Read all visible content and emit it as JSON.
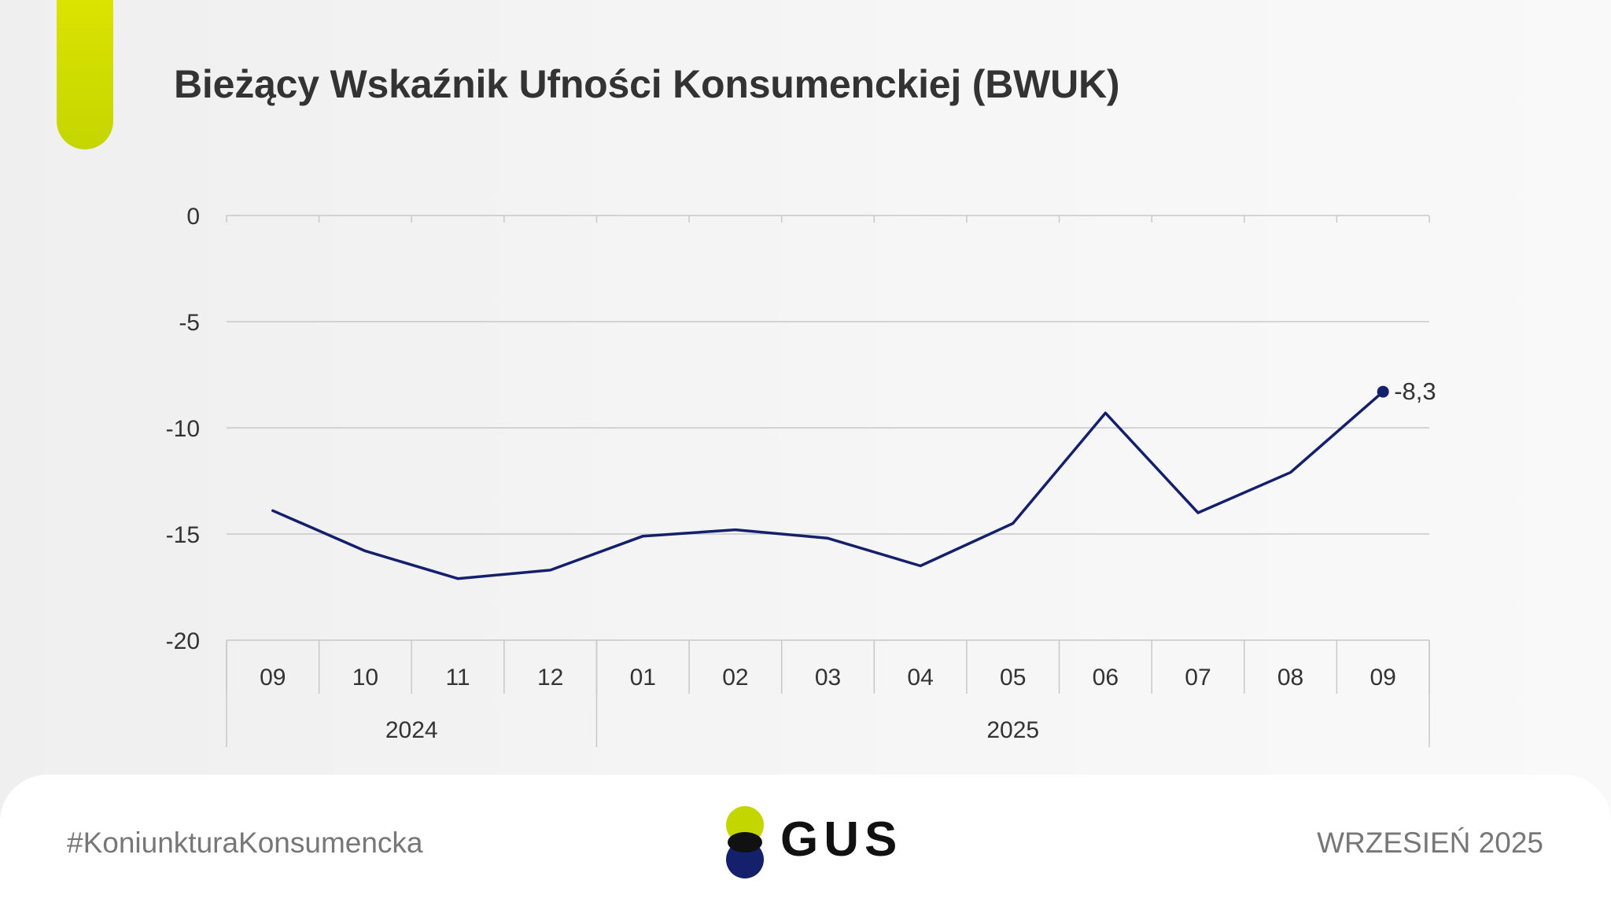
{
  "title": "Bieżący Wskaźnik Ufności Konsumenckiej (BWUK)",
  "colors": {
    "accent": "#c9d900",
    "line": "#14206b",
    "grid": "#c8c8c8",
    "text": "#333333"
  },
  "chart_data": {
    "type": "line",
    "categories": [
      "09",
      "10",
      "11",
      "12",
      "01",
      "02",
      "03",
      "04",
      "05",
      "06",
      "07",
      "08",
      "09"
    ],
    "year_groups": [
      {
        "label": "2024",
        "count": 4
      },
      {
        "label": "2025",
        "count": 9
      }
    ],
    "series": [
      {
        "values": [
          -13.9,
          -15.8,
          -17.1,
          -16.7,
          -15.1,
          -14.8,
          -15.2,
          -16.5,
          -14.5,
          -9.3,
          -14.0,
          -12.1,
          -8.3
        ]
      }
    ],
    "last_value_label": "-8,3",
    "yticks": [
      "0",
      "-5",
      "-10",
      "-15",
      "-20"
    ],
    "ylim": [
      -20,
      0
    ],
    "grid": true
  },
  "footer": {
    "hashtag": "#KoniunkturaKonsumencka",
    "logo_text": "GUS",
    "date": "WRZESIEŃ 2025"
  }
}
